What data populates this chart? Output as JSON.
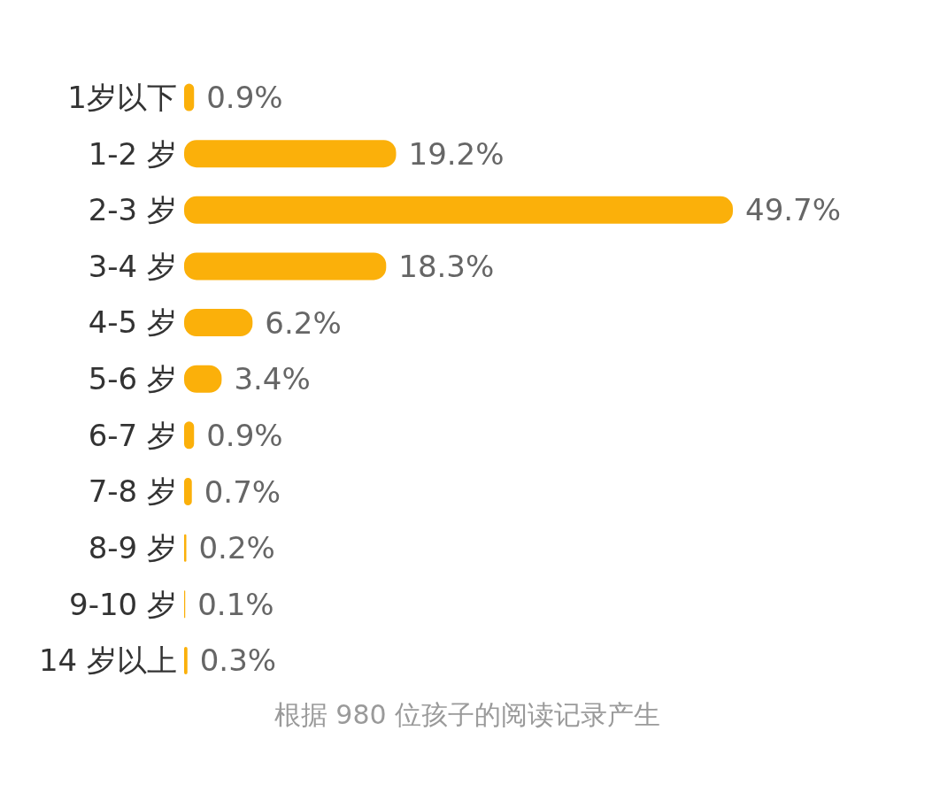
{
  "chart_data": {
    "type": "bar",
    "orientation": "horizontal",
    "categories": [
      "1岁以下",
      "1-2 岁",
      "2-3 岁",
      "3-4 岁",
      "4-5 岁",
      "5-6 岁",
      "6-7 岁",
      "7-8 岁",
      "8-9 岁",
      "9-10 岁",
      "14 岁以上"
    ],
    "values": [
      0.9,
      19.2,
      49.7,
      18.3,
      6.2,
      3.4,
      0.9,
      0.7,
      0.2,
      0.1,
      0.3
    ],
    "value_labels": [
      "0.9%",
      "19.2%",
      "49.7%",
      "18.3%",
      "6.2%",
      "3.4%",
      "0.9%",
      "0.7%",
      "0.2%",
      "0.1%",
      "0.3%"
    ],
    "color": "#fbb00a",
    "annotations": [
      "根据 980 位孩子的阅读记录产生"
    ]
  }
}
